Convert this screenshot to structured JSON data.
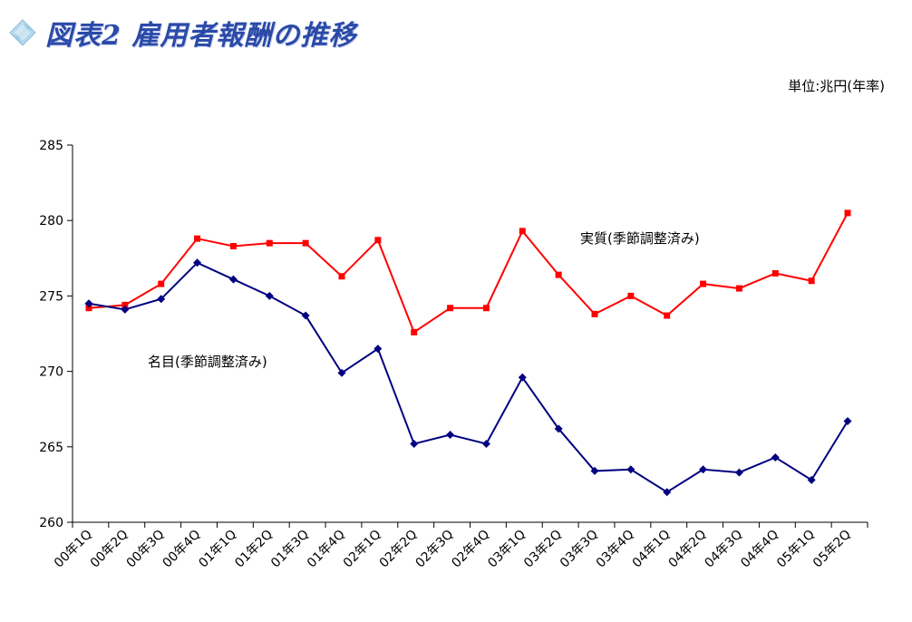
{
  "title": "図表2 雇用者報酬の推移",
  "unit": "単位:兆円(年率)",
  "icons": {
    "title_icon": "diamond-icon"
  },
  "colors": {
    "real": "#ff0000",
    "nominal": "#000080",
    "title": "#2b4aa8",
    "axis": "#000000"
  },
  "chart_data": {
    "type": "line",
    "title": "図表2 雇用者報酬の推移",
    "xlabel": "",
    "ylabel": "",
    "ylim": [
      260,
      285
    ],
    "yticks": [
      260,
      265,
      270,
      275,
      280,
      285
    ],
    "grid": false,
    "categories": [
      "00年1Q",
      "00年2Q",
      "00年3Q",
      "00年4Q",
      "01年1Q",
      "01年2Q",
      "01年3Q",
      "01年4Q",
      "02年1Q",
      "02年2Q",
      "02年3Q",
      "02年4Q",
      "03年1Q",
      "03年2Q",
      "03年3Q",
      "03年4Q",
      "04年1Q",
      "04年2Q",
      "04年3Q",
      "04年4Q",
      "05年1Q",
      "05年2Q"
    ],
    "series": [
      {
        "name": "実質(季節調整済み)",
        "color": "#ff0000",
        "marker": "square",
        "values": [
          274.2,
          274.4,
          275.8,
          278.8,
          278.3,
          278.5,
          278.5,
          276.3,
          278.7,
          272.6,
          274.2,
          274.2,
          279.3,
          276.4,
          273.8,
          275.0,
          273.7,
          275.8,
          275.5,
          276.5,
          276.0,
          280.5
        ]
      },
      {
        "name": "名目(季節調整済み)",
        "color": "#000080",
        "marker": "diamond",
        "values": [
          274.5,
          274.1,
          274.8,
          277.2,
          276.1,
          275.0,
          273.7,
          269.9,
          271.5,
          265.2,
          265.8,
          265.2,
          269.6,
          266.2,
          263.4,
          263.5,
          262.0,
          263.5,
          263.3,
          264.3,
          262.8,
          266.7
        ]
      }
    ]
  }
}
